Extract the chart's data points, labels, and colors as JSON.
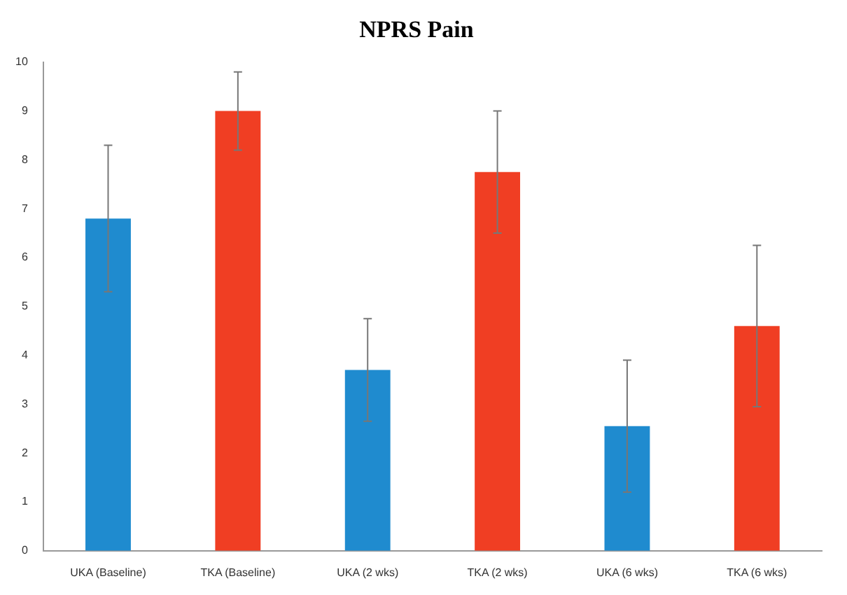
{
  "chart_data": {
    "type": "bar",
    "title": "NPRS Pain",
    "categories": [
      "UKA (Baseline)",
      "TKA (Baseline)",
      "UKA (2 wks)",
      "TKA (2 wks)",
      "UKA (6 wks)",
      "TKA (6 wks)"
    ],
    "values": [
      6.8,
      9.0,
      3.7,
      7.75,
      2.55,
      4.6
    ],
    "colors": [
      "#1f8bcf",
      "#f03e23",
      "#1f8bcf",
      "#f03e23",
      "#1f8bcf",
      "#f03e23"
    ],
    "errors": [
      1.5,
      0.8,
      1.05,
      1.25,
      1.35,
      1.65
    ],
    "ylim": [
      0,
      10
    ],
    "yticks": [
      0,
      1,
      2,
      3,
      4,
      5,
      6,
      7,
      8,
      9,
      10
    ],
    "grid": false
  }
}
